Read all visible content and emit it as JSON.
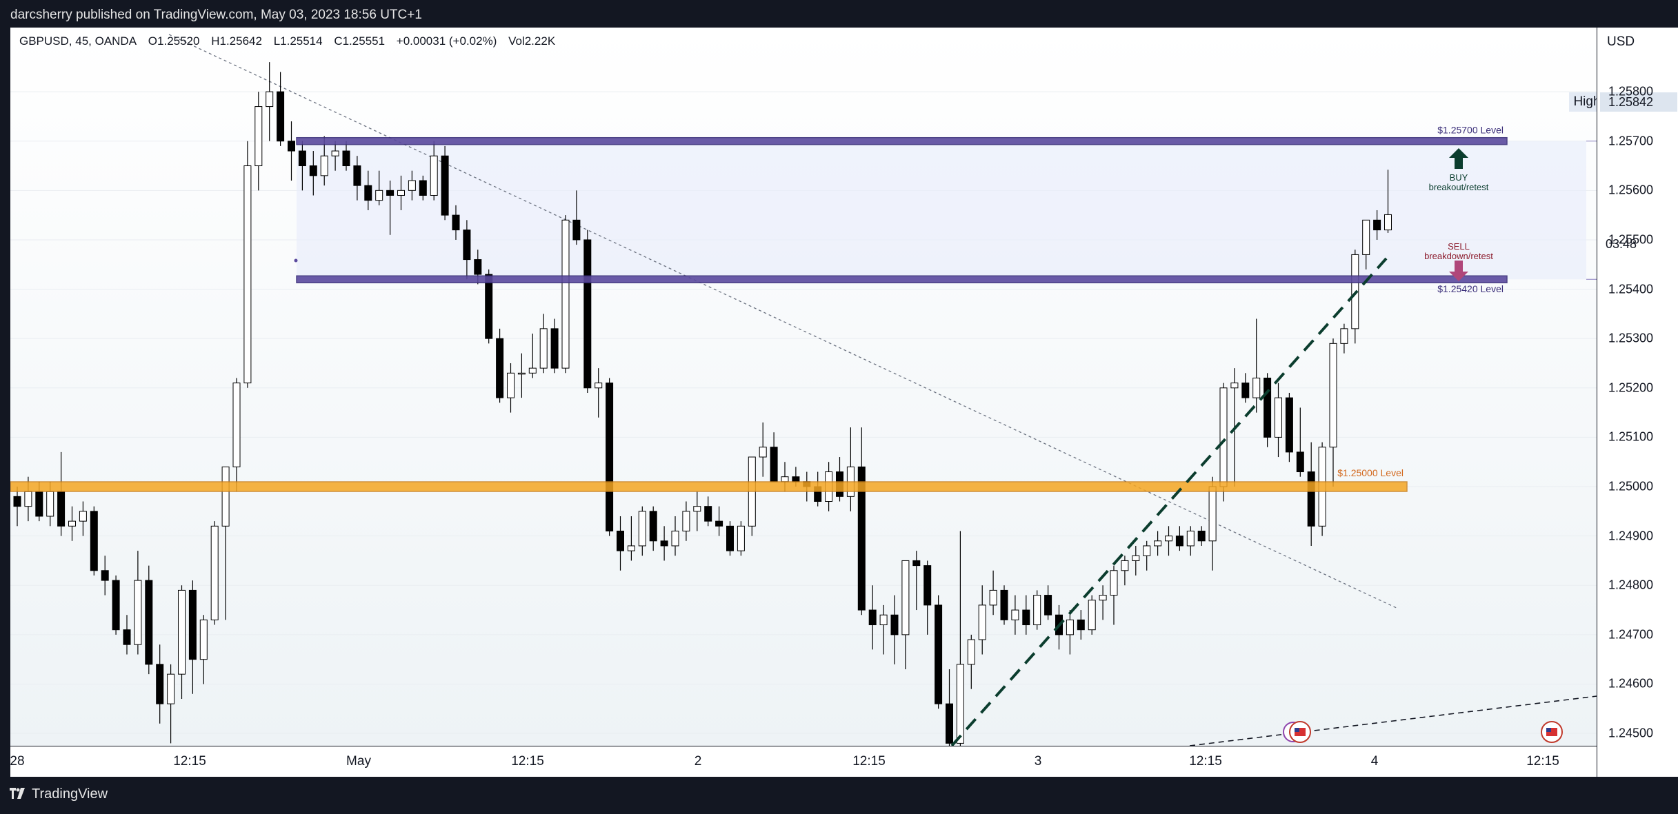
{
  "header": {
    "publisher": "darcsherry published on TradingView.com, May 03, 2023 18:56 UTC+1"
  },
  "legend": {
    "symbol": "GBPUSD, 45, OANDA",
    "open": "O1.25520",
    "high": "H1.25642",
    "low": "L1.25514",
    "close": "C1.25551",
    "change": "+0.00031 (+0.02%)",
    "volume": "Vol2.22K"
  },
  "price_scale": {
    "currency": "USD",
    "high_label": "High",
    "high_value": "1.25842",
    "countdown": "03:48"
  },
  "footer": {
    "brand": "TradingView"
  },
  "colors": {
    "up_body": "#ffffff",
    "down_body": "#000000",
    "zone_purple": "#5b4a9e",
    "zone_orange": "#f5a623",
    "trend_green": "#0b3d2e",
    "buy_arrow": "#0b3d2e",
    "sell_arrow": "#b0477a"
  },
  "chart_data": {
    "type": "candlestick",
    "symbol": "GBPUSD",
    "timeframe": "45",
    "ylim": [
      1.24475,
      1.2593
    ],
    "yticks": [
      "1.25800",
      "1.25700",
      "1.25600",
      "1.25500",
      "1.25400",
      "1.25300",
      "1.25200",
      "1.25100",
      "1.25000",
      "1.24900",
      "1.24800",
      "1.24700",
      "1.24600",
      "1.24500"
    ],
    "xticks": [
      "28",
      "12:15",
      "May",
      "12:15",
      "2",
      "12:15",
      "3",
      "12:15",
      "4",
      "12:15"
    ],
    "candles": [
      [
        1.2498,
        1.25,
        1.2492,
        1.2496
      ],
      [
        1.2496,
        1.2502,
        1.2493,
        1.2499
      ],
      [
        1.2499,
        1.2501,
        1.2493,
        1.2494
      ],
      [
        1.2494,
        1.2501,
        1.2492,
        1.2499
      ],
      [
        1.2499,
        1.2507,
        1.249,
        1.2492
      ],
      [
        1.2492,
        1.2496,
        1.2489,
        1.2493
      ],
      [
        1.2493,
        1.2497,
        1.249,
        1.2495
      ],
      [
        1.2495,
        1.2496,
        1.2482,
        1.2483
      ],
      [
        1.2483,
        1.2486,
        1.2478,
        1.2481
      ],
      [
        1.2481,
        1.2482,
        1.247,
        1.2471
      ],
      [
        1.2471,
        1.2474,
        1.2466,
        1.2468
      ],
      [
        1.2468,
        1.2487,
        1.2466,
        1.2481
      ],
      [
        1.2481,
        1.2484,
        1.2462,
        1.2464
      ],
      [
        1.2464,
        1.2468,
        1.2452,
        1.2456
      ],
      [
        1.2456,
        1.2464,
        1.2448,
        1.2462
      ],
      [
        1.2462,
        1.248,
        1.2457,
        1.2479
      ],
      [
        1.2479,
        1.2481,
        1.2458,
        1.2465
      ],
      [
        1.2465,
        1.2474,
        1.246,
        1.2473
      ],
      [
        1.2473,
        1.2493,
        1.2472,
        1.2492
      ],
      [
        1.2492,
        1.2503,
        1.2473,
        1.2504
      ],
      [
        1.2504,
        1.2522,
        1.2499,
        1.2521
      ],
      [
        1.2521,
        1.257,
        1.252,
        1.2565
      ],
      [
        1.2565,
        1.258,
        1.256,
        1.2577
      ],
      [
        1.2577,
        1.2586,
        1.257,
        1.258
      ],
      [
        1.258,
        1.2584,
        1.2569,
        1.257
      ],
      [
        1.257,
        1.2574,
        1.2562,
        1.2568
      ],
      [
        1.2568,
        1.257,
        1.256,
        1.2565
      ],
      [
        1.2565,
        1.2568,
        1.2559,
        1.2563
      ],
      [
        1.2563,
        1.2571,
        1.2561,
        1.2567
      ],
      [
        1.2567,
        1.257,
        1.2564,
        1.2568
      ],
      [
        1.2568,
        1.257,
        1.2564,
        1.2565
      ],
      [
        1.2565,
        1.2567,
        1.2558,
        1.2561
      ],
      [
        1.2561,
        1.2564,
        1.2556,
        1.2558
      ],
      [
        1.2558,
        1.2564,
        1.2557,
        1.256
      ],
      [
        1.256,
        1.2562,
        1.2551,
        1.2559
      ],
      [
        1.2559,
        1.2563,
        1.2556,
        1.256
      ],
      [
        1.256,
        1.2564,
        1.2558,
        1.2562
      ],
      [
        1.2562,
        1.2563,
        1.2558,
        1.2559
      ],
      [
        1.2559,
        1.257,
        1.2558,
        1.2567
      ],
      [
        1.2567,
        1.2569,
        1.2554,
        1.2555
      ],
      [
        1.2555,
        1.2557,
        1.255,
        1.2552
      ],
      [
        1.2552,
        1.2554,
        1.2542,
        1.2546
      ],
      [
        1.2546,
        1.2548,
        1.2541,
        1.2543
      ],
      [
        1.2543,
        1.2544,
        1.2529,
        1.253
      ],
      [
        1.253,
        1.2532,
        1.2517,
        1.2518
      ],
      [
        1.2518,
        1.2525,
        1.2515,
        1.2523
      ],
      [
        1.2523,
        1.2527,
        1.2518,
        1.2523
      ],
      [
        1.2523,
        1.2531,
        1.2522,
        1.2524
      ],
      [
        1.2524,
        1.2535,
        1.2523,
        1.2532
      ],
      [
        1.2532,
        1.2534,
        1.2523,
        1.2524
      ],
      [
        1.2524,
        1.2555,
        1.2523,
        1.2554
      ],
      [
        1.2554,
        1.256,
        1.2549,
        1.255
      ],
      [
        1.255,
        1.2552,
        1.2519,
        1.252
      ],
      [
        1.252,
        1.2524,
        1.2514,
        1.2521
      ],
      [
        1.2521,
        1.2522,
        1.249,
        1.2491
      ],
      [
        1.2491,
        1.2494,
        1.2483,
        1.2487
      ],
      [
        1.2487,
        1.2494,
        1.2485,
        1.2488
      ],
      [
        1.2488,
        1.2496,
        1.2486,
        1.2495
      ],
      [
        1.2495,
        1.2496,
        1.2487,
        1.2489
      ],
      [
        1.2489,
        1.2492,
        1.2485,
        1.2488
      ],
      [
        1.2488,
        1.2494,
        1.2486,
        1.2491
      ],
      [
        1.2491,
        1.2497,
        1.2489,
        1.2495
      ],
      [
        1.2495,
        1.2499,
        1.2491,
        1.2496
      ],
      [
        1.2496,
        1.2498,
        1.2492,
        1.2493
      ],
      [
        1.2493,
        1.2496,
        1.249,
        1.2492
      ],
      [
        1.2492,
        1.2493,
        1.2486,
        1.2487
      ],
      [
        1.2487,
        1.2493,
        1.2486,
        1.2492
      ],
      [
        1.2492,
        1.2505,
        1.249,
        1.2506
      ],
      [
        1.2506,
        1.2513,
        1.2502,
        1.2508
      ],
      [
        1.2508,
        1.2511,
        1.2502,
        1.2501
      ],
      [
        1.2501,
        1.2505,
        1.2499,
        1.2502
      ],
      [
        1.2502,
        1.2504,
        1.25,
        1.2501
      ],
      [
        1.2501,
        1.2503,
        1.2497,
        1.25
      ],
      [
        1.25,
        1.2503,
        1.2496,
        1.2497
      ],
      [
        1.2497,
        1.2505,
        1.2495,
        1.2503
      ],
      [
        1.2503,
        1.2506,
        1.2497,
        1.2498
      ],
      [
        1.2498,
        1.2512,
        1.2495,
        1.2504
      ],
      [
        1.2504,
        1.2512,
        1.2474,
        1.2475
      ],
      [
        1.2475,
        1.248,
        1.2467,
        1.2472
      ],
      [
        1.2472,
        1.2476,
        1.2466,
        1.2474
      ],
      [
        1.2474,
        1.2478,
        1.2464,
        1.247
      ],
      [
        1.247,
        1.2484,
        1.2463,
        1.2485
      ],
      [
        1.2485,
        1.2487,
        1.2475,
        1.2484
      ],
      [
        1.2484,
        1.2485,
        1.247,
        1.2476
      ],
      [
        1.2476,
        1.2478,
        1.2455,
        1.2456
      ],
      [
        1.2456,
        1.2463,
        1.2447,
        1.2448
      ],
      [
        1.2448,
        1.2491,
        1.2447,
        1.2464
      ],
      [
        1.2464,
        1.247,
        1.2459,
        1.2469
      ],
      [
        1.2469,
        1.248,
        1.2466,
        1.2476
      ],
      [
        1.2476,
        1.2483,
        1.2474,
        1.2479
      ],
      [
        1.2479,
        1.248,
        1.2472,
        1.2473
      ],
      [
        1.2473,
        1.2478,
        1.247,
        1.2475
      ],
      [
        1.2475,
        1.2478,
        1.247,
        1.2472
      ],
      [
        1.2472,
        1.2479,
        1.2471,
        1.2478
      ],
      [
        1.2478,
        1.248,
        1.2473,
        1.2474
      ],
      [
        1.2474,
        1.2476,
        1.2467,
        1.247
      ],
      [
        1.247,
        1.2475,
        1.2466,
        1.2473
      ],
      [
        1.2473,
        1.2475,
        1.2469,
        1.2471
      ],
      [
        1.2471,
        1.2478,
        1.247,
        1.2477
      ],
      [
        1.2477,
        1.248,
        1.2473,
        1.2478
      ],
      [
        1.2478,
        1.2484,
        1.2472,
        1.2483
      ],
      [
        1.2483,
        1.2486,
        1.248,
        1.2485
      ],
      [
        1.2485,
        1.2488,
        1.2482,
        1.2486
      ],
      [
        1.2486,
        1.2489,
        1.2483,
        1.2488
      ],
      [
        1.2488,
        1.2491,
        1.2486,
        1.2489
      ],
      [
        1.2489,
        1.2492,
        1.2486,
        1.249
      ],
      [
        1.249,
        1.2492,
        1.2487,
        1.2488
      ],
      [
        1.2488,
        1.2492,
        1.2486,
        1.2491
      ],
      [
        1.2491,
        1.2492,
        1.2488,
        1.2489
      ],
      [
        1.2489,
        1.2502,
        1.2483,
        1.25
      ],
      [
        1.25,
        1.2521,
        1.2497,
        1.252
      ],
      [
        1.252,
        1.2524,
        1.25,
        1.2521
      ],
      [
        1.2521,
        1.2523,
        1.2517,
        1.2518
      ],
      [
        1.2518,
        1.2534,
        1.2515,
        1.2522
      ],
      [
        1.2522,
        1.2523,
        1.2508,
        1.251
      ],
      [
        1.251,
        1.2521,
        1.2506,
        1.2518
      ],
      [
        1.2518,
        1.2519,
        1.2505,
        1.2507
      ],
      [
        1.2507,
        1.2516,
        1.2502,
        1.2503
      ],
      [
        1.2503,
        1.2509,
        1.2488,
        1.2492
      ],
      [
        1.2492,
        1.2509,
        1.249,
        1.2508
      ],
      [
        1.2508,
        1.253,
        1.25,
        1.2529
      ],
      [
        1.2529,
        1.2533,
        1.2527,
        1.2532
      ],
      [
        1.2532,
        1.2548,
        1.2529,
        1.2547
      ],
      [
        1.2547,
        1.2554,
        1.2544,
        1.2554
      ],
      [
        1.2554,
        1.2556,
        1.255,
        1.2552
      ],
      [
        1.2552,
        1.25642,
        1.25514,
        1.25551
      ]
    ],
    "horizontal_levels": [
      {
        "label": "$1.25700 Level",
        "price": 1.257,
        "color": "#5b4a9e"
      },
      {
        "label": "$1.25420 Level",
        "price": 1.2542,
        "color": "#5b4a9e"
      },
      {
        "label": "$1.25000 Level",
        "price": 1.25,
        "color": "#f5a623"
      }
    ],
    "annotations": {
      "buy": {
        "title": "BUY",
        "subtitle": "breakout/retest"
      },
      "sell": {
        "title": "SELL",
        "subtitle": "breakdown/retest"
      }
    }
  }
}
